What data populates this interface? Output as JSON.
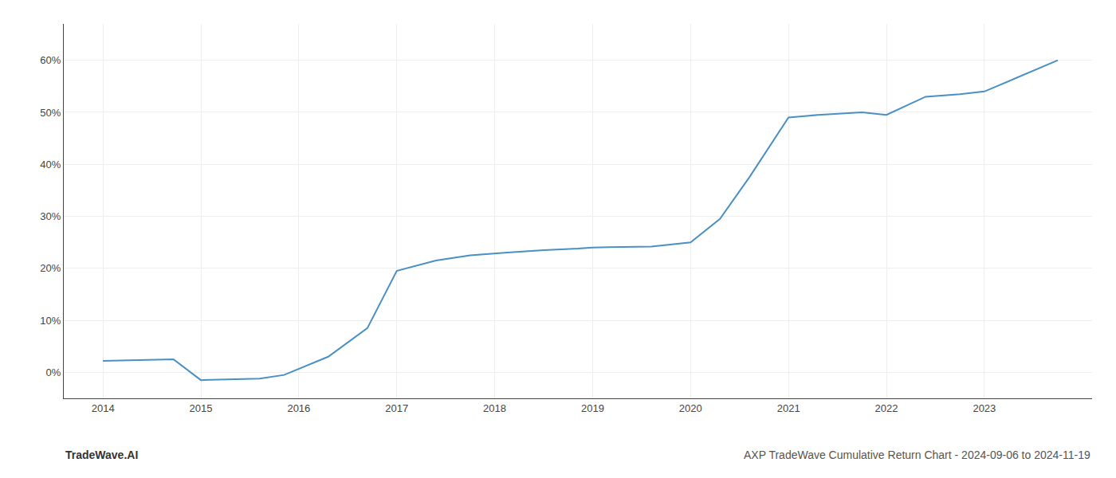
{
  "chart_data": {
    "type": "line",
    "title": "AXP TradeWave Cumulative Return Chart - 2024-09-06 to 2024-11-19",
    "annotations": [
      {
        "text": "TradeWave.AI"
      }
    ],
    "x": [
      2014.0,
      2014.72,
      2015.0,
      2015.6,
      2015.85,
      2016.3,
      2016.7,
      2017.0,
      2017.4,
      2017.75,
      2018.1,
      2018.5,
      2018.85,
      2019.0,
      2019.3,
      2019.6,
      2020.0,
      2020.3,
      2020.6,
      2021.0,
      2021.3,
      2021.75,
      2022.0,
      2022.4,
      2022.75,
      2023.0,
      2023.75
    ],
    "values": [
      2.2,
      2.5,
      -1.5,
      -1.2,
      -0.5,
      3.0,
      8.5,
      19.5,
      21.5,
      22.5,
      23.0,
      23.5,
      23.8,
      24.0,
      24.1,
      24.2,
      25.0,
      29.5,
      37.5,
      49.0,
      49.5,
      50.0,
      49.5,
      53.0,
      53.5,
      54.0,
      60.0
    ],
    "color": "#4a90c4",
    "xlim": [
      2013.6,
      2024.1
    ],
    "ylim": [
      -5,
      67
    ],
    "xticks": [
      2014,
      2015,
      2016,
      2017,
      2018,
      2019,
      2020,
      2021,
      2022,
      2023
    ],
    "yticks": [
      {
        "value": 0,
        "label": "0%"
      },
      {
        "value": 10,
        "label": "10%"
      },
      {
        "value": 20,
        "label": "20%"
      },
      {
        "value": 30,
        "label": "30%"
      },
      {
        "value": 40,
        "label": "40%"
      },
      {
        "value": 50,
        "label": "50%"
      },
      {
        "value": 60,
        "label": "60%"
      }
    ],
    "grid": true
  }
}
